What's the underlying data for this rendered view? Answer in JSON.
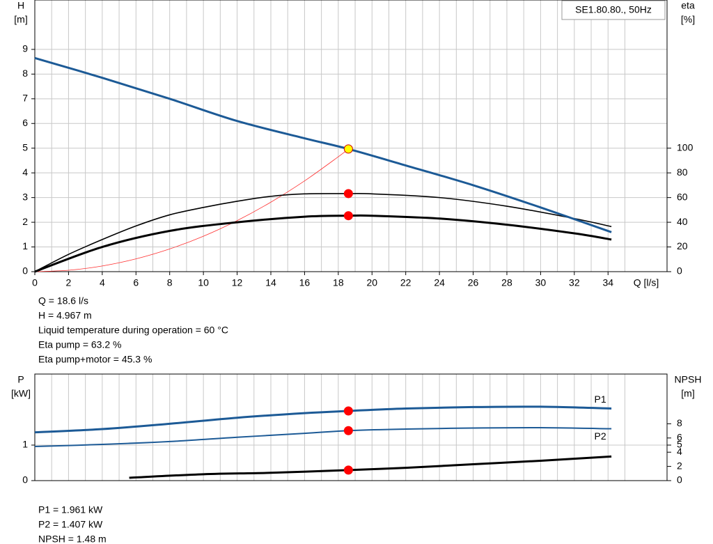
{
  "chart_data": [
    {
      "type": "line",
      "title": "SE1.80.80., 50Hz",
      "ylabel": [
        "H",
        "[m]"
      ],
      "y2label": [
        "eta",
        "[%]"
      ],
      "xlabel": "Q [l/s]",
      "xlim": [
        0,
        37.5
      ],
      "xticks": [
        0,
        2,
        4,
        6,
        8,
        10,
        12,
        14,
        16,
        18,
        20,
        22,
        24,
        26,
        28,
        30,
        32,
        34
      ],
      "ylim": [
        0,
        11
      ],
      "yticks": [
        0,
        1,
        2,
        3,
        4,
        5,
        6,
        7,
        8,
        9
      ],
      "y2lim": [
        0,
        220
      ],
      "y2ticks": [
        0,
        20,
        40,
        60,
        80,
        100
      ],
      "grid": true,
      "series": [
        {
          "color": "#ff3030",
          "width": 0.8,
          "x": [
            0,
            2,
            4,
            6,
            8,
            10,
            12,
            14,
            16,
            18,
            18.6
          ],
          "values": [
            0,
            0.057,
            0.23,
            0.517,
            0.919,
            1.436,
            2.067,
            2.814,
            3.675,
            4.652,
            4.967
          ]
        },
        {
          "color": "#000000",
          "width": 1.6,
          "axis": "y2",
          "x": [
            0,
            2,
            4,
            6,
            8,
            10,
            12,
            14,
            16,
            18.6,
            20,
            24,
            28,
            32,
            34.2
          ],
          "values": [
            0,
            14,
            26,
            37,
            46,
            52,
            57,
            61,
            63,
            63.2,
            63,
            60,
            53,
            43,
            36.5
          ]
        },
        {
          "color": "#000000",
          "width": 3,
          "axis": "y2",
          "x": [
            0,
            4,
            8,
            12,
            16,
            18.6,
            20,
            24,
            28,
            32,
            34.2
          ],
          "values": [
            0,
            20,
            33,
            40,
            44.5,
            45.3,
            45.3,
            43,
            38,
            31,
            26
          ]
        },
        {
          "color": "#1c5a96",
          "width": 3,
          "x": [
            0,
            4,
            8,
            12,
            16,
            18.6,
            22,
            26,
            30,
            34.2
          ],
          "values": [
            8.65,
            7.85,
            7.0,
            6.1,
            5.4,
            4.967,
            4.3,
            3.5,
            2.6,
            1.6
          ]
        }
      ],
      "points": [
        {
          "x": 18.6,
          "value": 63.2,
          "axis": "y2",
          "color": "#ff0000"
        },
        {
          "x": 18.6,
          "value": 45.3,
          "axis": "y2",
          "color": "#ff0000"
        },
        {
          "x": 18.6,
          "value": 4.967,
          "color": "#ffff00"
        }
      ],
      "notes": [
        "Q = 18.6 l/s",
        "H = 4.967 m",
        "Liquid temperature during operation = 60 °C",
        "Eta pump = 63.2 %",
        "Eta pump+motor = 45.3 %"
      ]
    },
    {
      "type": "line",
      "ylabel": [
        "P",
        "[kW]"
      ],
      "y2label": [
        "NPSH",
        "[m]"
      ],
      "xlim": [
        0,
        37.5
      ],
      "ylim": [
        0,
        3
      ],
      "yticks": [
        0,
        1
      ],
      "y2lim": [
        0,
        15
      ],
      "y2ticks": [
        0,
        2,
        4,
        5,
        6,
        8
      ],
      "grid": true,
      "series": [
        {
          "name": "P1",
          "color": "#1c5a96",
          "width": 3,
          "x": [
            0,
            4,
            8,
            12,
            16,
            18.6,
            22,
            26,
            30,
            34.2
          ],
          "values": [
            1.36,
            1.45,
            1.6,
            1.77,
            1.9,
            1.961,
            2.03,
            2.07,
            2.08,
            2.03
          ]
        },
        {
          "name": "P2",
          "color": "#1c5a96",
          "width": 2,
          "x": [
            0,
            4,
            8,
            12,
            16,
            18.6,
            22,
            26,
            30,
            34.2
          ],
          "values": [
            0.96,
            1.02,
            1.1,
            1.22,
            1.33,
            1.407,
            1.45,
            1.48,
            1.49,
            1.46
          ]
        },
        {
          "color": "#000000",
          "width": 3,
          "axis": "y2",
          "x": [
            5.6,
            10,
            14,
            18.6,
            22,
            26,
            30,
            34.2
          ],
          "values": [
            0.4,
            0.9,
            1.1,
            1.48,
            1.8,
            2.3,
            2.8,
            3.4
          ]
        }
      ],
      "points": [
        {
          "x": 18.6,
          "value": 1.961,
          "color": "#ff0000"
        },
        {
          "x": 18.6,
          "value": 1.407,
          "color": "#ff0000"
        },
        {
          "x": 18.6,
          "value": 1.48,
          "axis": "y2",
          "color": "#ff0000"
        }
      ],
      "notes": [
        "P1 = 1.961 kW",
        "P2 = 1.407 kW",
        "NPSH = 1.48 m"
      ]
    }
  ]
}
